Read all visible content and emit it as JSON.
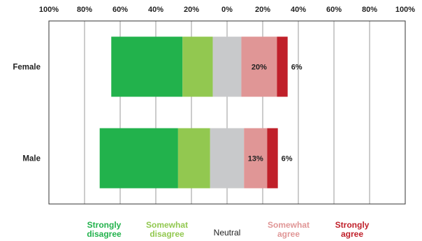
{
  "chart_data": {
    "type": "bar",
    "orientation": "horizontal",
    "stacked": "diverging",
    "categories": [
      "Female",
      "Male"
    ],
    "series": [
      {
        "name": "Strongly disagree",
        "legend_lines": [
          "Strongly",
          "disagree"
        ],
        "color": "#22b24c",
        "values": [
          -40,
          -44
        ]
      },
      {
        "name": "Somewhat disagree",
        "legend_lines": [
          "Somewhat",
          "disagree"
        ],
        "color": "#92c850",
        "values": [
          -17,
          -18
        ]
      },
      {
        "name": "Neutral",
        "legend_lines": [
          "Neutral"
        ],
        "color": "#c8c9cb",
        "values": [
          16,
          19
        ]
      },
      {
        "name": "Somewhat agree",
        "legend_lines": [
          "Somewhat",
          "agree"
        ],
        "color": "#e09696",
        "values": [
          20,
          13
        ]
      },
      {
        "name": "Strongly agree",
        "legend_lines": [
          "Strongly",
          "agree"
        ],
        "color": "#c0202a",
        "values": [
          6,
          6
        ]
      }
    ],
    "data_labels": [
      {
        "category": "Female",
        "series": "Somewhat agree",
        "text": "20%"
      },
      {
        "category": "Female",
        "series": "Strongly agree",
        "text": "6%"
      },
      {
        "category": "Male",
        "series": "Somewhat agree",
        "text": "13%"
      },
      {
        "category": "Male",
        "series": "Strongly agree",
        "text": "6%"
      }
    ],
    "x_ticks": [
      "100%",
      "80%",
      "60%",
      "40%",
      "20%",
      "0%",
      "20%",
      "40%",
      "60%",
      "80%",
      "100%"
    ],
    "xlim": [
      -100,
      100
    ],
    "grid": true,
    "legend_position": "bottom",
    "title": "",
    "xlabel": "",
    "ylabel": ""
  }
}
